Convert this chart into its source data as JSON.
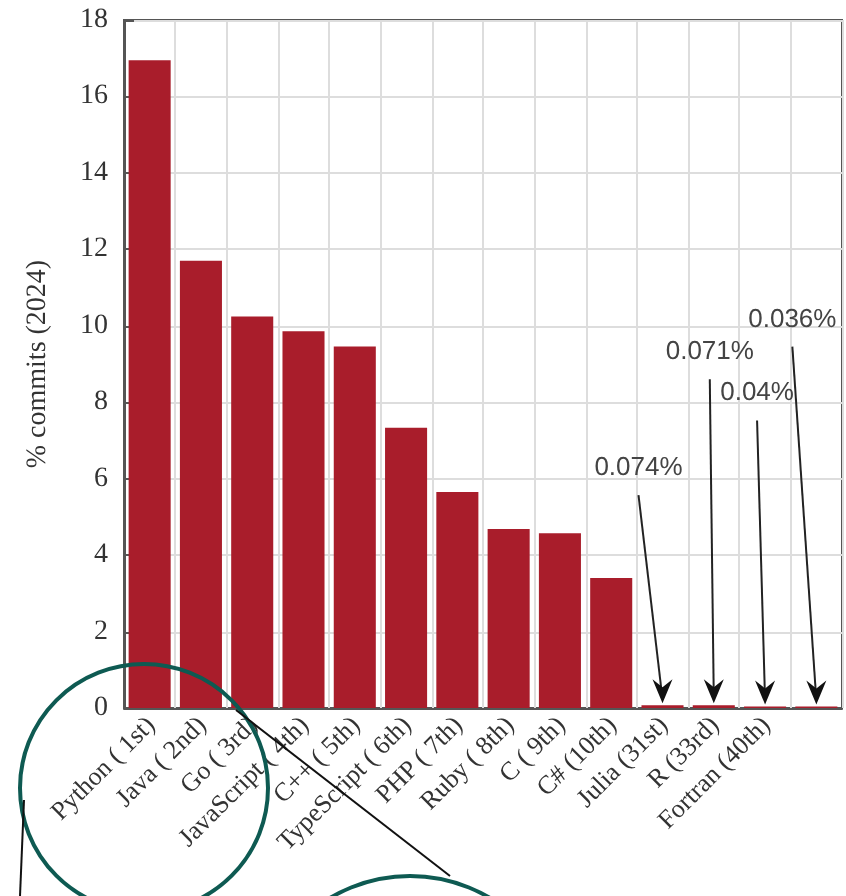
{
  "chart_data": {
    "type": "bar",
    "ylabel": "% commits (2024)",
    "categories": [
      "Python ( 1st)",
      "Java ( 2nd)",
      "Go ( 3rd)",
      "JavaScript ( 4th)",
      "C++ ( 5th)",
      "TypeScript ( 6th)",
      "PHP ( 7th)",
      "Ruby ( 8th)",
      "C ( 9th)",
      "C# (10th)",
      "Julia (31st)",
      "R (33rd)",
      "Fortran (40th)",
      null
    ],
    "values": [
      16.95,
      11.7,
      10.24,
      9.86,
      9.46,
      7.33,
      5.65,
      4.68,
      4.57,
      3.4,
      0.074,
      0.071,
      0.04,
      0.036
    ],
    "color": "#a91d2b",
    "annotations": [
      {
        "text": "0.074%",
        "x": "Julia (31st)",
        "y": 0.074
      },
      {
        "text": "0.071%",
        "x": "R (33rd)",
        "y": 0.071
      },
      {
        "text": "0.04%",
        "x": "Fortran (40th)",
        "y": 0.04
      },
      "0.036%"
    ],
    "ylim": [
      0,
      18
    ],
    "yticks": [
      0,
      2,
      4,
      6,
      8,
      10,
      12,
      14,
      16,
      18
    ],
    "grid": true
  }
}
